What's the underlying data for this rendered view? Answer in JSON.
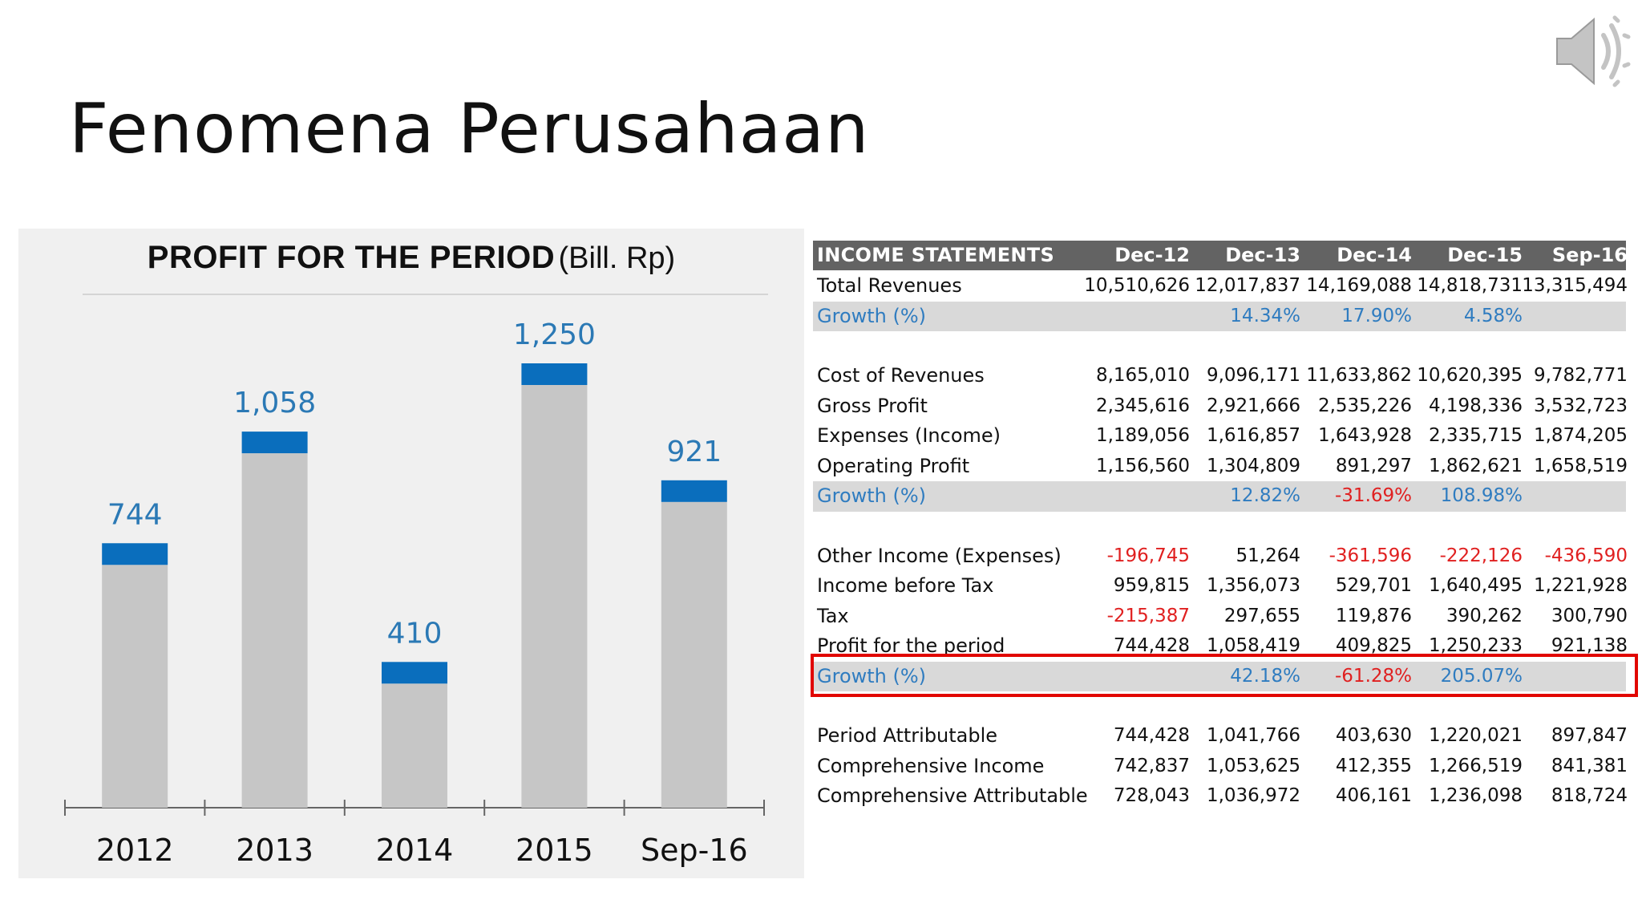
{
  "slide": {
    "title": "Fenomena Perusahaan"
  },
  "speaker_icon": "speaker-audio-icon",
  "colors": {
    "bar_gray": "#c6c6c6",
    "bar_accent": "#0a6ebd",
    "value_label": "#2b79b5",
    "table_header": "#636363",
    "row_shade": "#d9d9d9",
    "growth_text": "#2f7cc0",
    "negative": "#e02020",
    "highlight_border": "#e10600"
  },
  "chart_data": {
    "type": "bar",
    "title": "PROFIT FOR THE PERIOD",
    "title_unit": "(Bill. Rp)",
    "categories": [
      "2012",
      "2013",
      "2014",
      "2015",
      "Sep-16"
    ],
    "values": [
      744,
      1058,
      410,
      1250,
      921
    ],
    "value_labels": [
      "744",
      "1,058",
      "410",
      "1,250",
      "921"
    ],
    "xlabel": "",
    "ylabel": "",
    "grid": false
  },
  "table": {
    "header": {
      "label": "INCOME STATEMENTS",
      "columns": [
        "Dec-12",
        "Dec-13",
        "Dec-14",
        "Dec-15",
        "Sep-16"
      ]
    },
    "rows": [
      {
        "label": "Total Revenues",
        "values": [
          "10,510,626",
          "12,017,837",
          "14,169,088",
          "14,818,731",
          "13,315,494"
        ]
      },
      {
        "label": "Growth (%)",
        "values": [
          "",
          "14.34%",
          "17.90%",
          "4.58%",
          ""
        ]
      },
      {
        "label": "",
        "values": [
          "",
          "",
          "",
          "",
          ""
        ]
      },
      {
        "label": "Cost of Revenues",
        "values": [
          "8,165,010",
          "9,096,171",
          "11,633,862",
          "10,620,395",
          "9,782,771"
        ]
      },
      {
        "label": "Gross Profit",
        "values": [
          "2,345,616",
          "2,921,666",
          "2,535,226",
          "4,198,336",
          "3,532,723"
        ]
      },
      {
        "label": "Expenses (Income)",
        "values": [
          "1,189,056",
          "1,616,857",
          "1,643,928",
          "2,335,715",
          "1,874,205"
        ]
      },
      {
        "label": "Operating Profit",
        "values": [
          "1,156,560",
          "1,304,809",
          "891,297",
          "1,862,621",
          "1,658,519"
        ]
      },
      {
        "label": "Growth (%)",
        "values": [
          "",
          "12.82%",
          "-31.69%",
          "108.98%",
          ""
        ]
      },
      {
        "label": "",
        "values": [
          "",
          "",
          "",
          "",
          ""
        ]
      },
      {
        "label": "Other Income (Expenses)",
        "values": [
          "-196,745",
          "51,264",
          "-361,596",
          "-222,126",
          "-436,590"
        ]
      },
      {
        "label": "Income before Tax",
        "values": [
          "959,815",
          "1,356,073",
          "529,701",
          "1,640,495",
          "1,221,928"
        ]
      },
      {
        "label": "Tax",
        "values": [
          "-215,387",
          "297,655",
          "119,876",
          "390,262",
          "300,790"
        ]
      },
      {
        "label": "Profit for the period",
        "values": [
          "744,428",
          "1,058,419",
          "409,825",
          "1,250,233",
          "921,138"
        ]
      },
      {
        "label": "Growth (%)",
        "values": [
          "",
          "42.18%",
          "-61.28%",
          "205.07%",
          ""
        ]
      },
      {
        "label": "",
        "values": [
          "",
          "",
          "",
          "",
          ""
        ]
      },
      {
        "label": "Period Attributable",
        "values": [
          "744,428",
          "1,041,766",
          "403,630",
          "1,220,021",
          "897,847"
        ]
      },
      {
        "label": "Comprehensive Income",
        "values": [
          "742,837",
          "1,053,625",
          "412,355",
          "1,266,519",
          "841,381"
        ]
      },
      {
        "label": "Comprehensive Attributable",
        "values": [
          "728,043",
          "1,036,972",
          "406,161",
          "1,236,098",
          "818,724"
        ]
      }
    ]
  }
}
